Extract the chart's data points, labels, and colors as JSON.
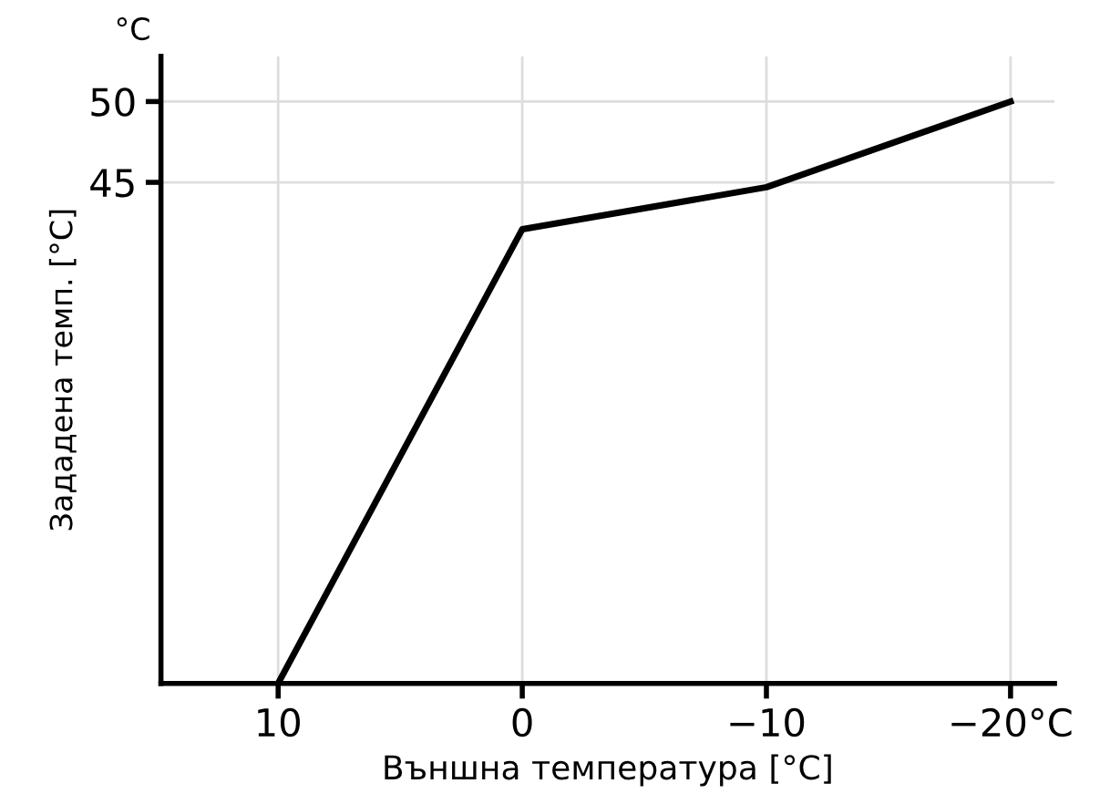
{
  "chart_data": {
    "type": "line",
    "xlabel": "Външна температура [°C]",
    "ylabel": "Зададена темп. [°C]",
    "annotations": [
      "°C"
    ],
    "x": [
      10,
      0,
      -10,
      -20
    ],
    "series": [
      {
        "color": "#000000",
        "values": [
          14,
          42.1,
          44.7,
          50
        ]
      }
    ],
    "xlim": [
      14.8,
      -21.8
    ],
    "ylim": [
      14,
      52.8
    ],
    "xticks": [
      10,
      0,
      -10,
      {
        "value": -20,
        "label": "−20°C"
      }
    ],
    "yticks": [
      45,
      50
    ],
    "grid": true,
    "marker": "none",
    "line_style": "solid"
  }
}
